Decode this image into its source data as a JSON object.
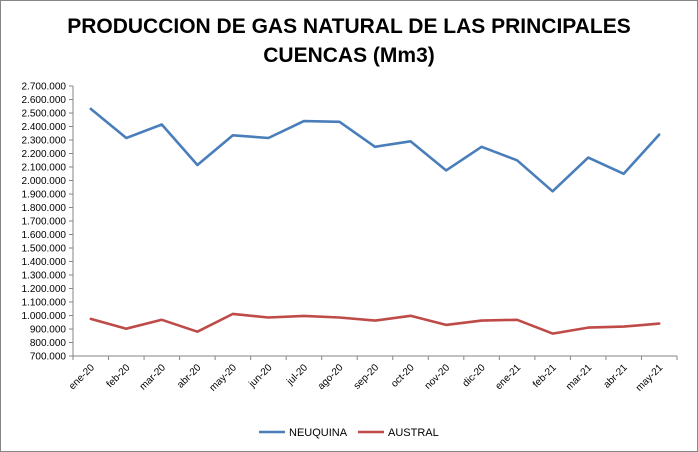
{
  "chart_data": {
    "type": "line",
    "title": "PRODUCCION DE GAS NATURAL DE LAS PRINCIPALES\nCUENCAS (Mm3)",
    "categories": [
      "ene-20",
      "feb-20",
      "mar-20",
      "abr-20",
      "may-20",
      "jun-20",
      "jul-20",
      "ago-20",
      "sep-20",
      "oct-20",
      "nov-20",
      "dic-20",
      "ene-21",
      "feb-21",
      "mar-21",
      "abr-21",
      "may-21"
    ],
    "series": [
      {
        "name": "NEUQUINA",
        "color": "#4a7ebb",
        "values": [
          2530000,
          2315000,
          2415000,
          2115000,
          2335000,
          2315000,
          2440000,
          2435000,
          2250000,
          2290000,
          2075000,
          2250000,
          2150000,
          1920000,
          2170000,
          2050000,
          2340000
        ]
      },
      {
        "name": "AUSTRAL",
        "color": "#be4b48",
        "values": [
          975000,
          902000,
          968000,
          880000,
          1012000,
          985000,
          997000,
          985000,
          962000,
          998000,
          930000,
          962000,
          968000,
          866000,
          910000,
          918000,
          940000
        ]
      }
    ],
    "ylim": [
      700000,
      2700000
    ],
    "ytick_step": 100000,
    "yticks": [
      "700.000",
      "800.000",
      "900.000",
      "1.000.000",
      "1.100.000",
      "1.200.000",
      "1.300.000",
      "1.400.000",
      "1.500.000",
      "1.600.000",
      "1.700.000",
      "1.800.000",
      "1.900.000",
      "2.000.000",
      "2.100.000",
      "2.200.000",
      "2.300.000",
      "2.400.000",
      "2.500.000",
      "2.600.000",
      "2.700.000"
    ],
    "grid": false,
    "legend_position": "bottom",
    "xlabel": "",
    "ylabel": ""
  }
}
